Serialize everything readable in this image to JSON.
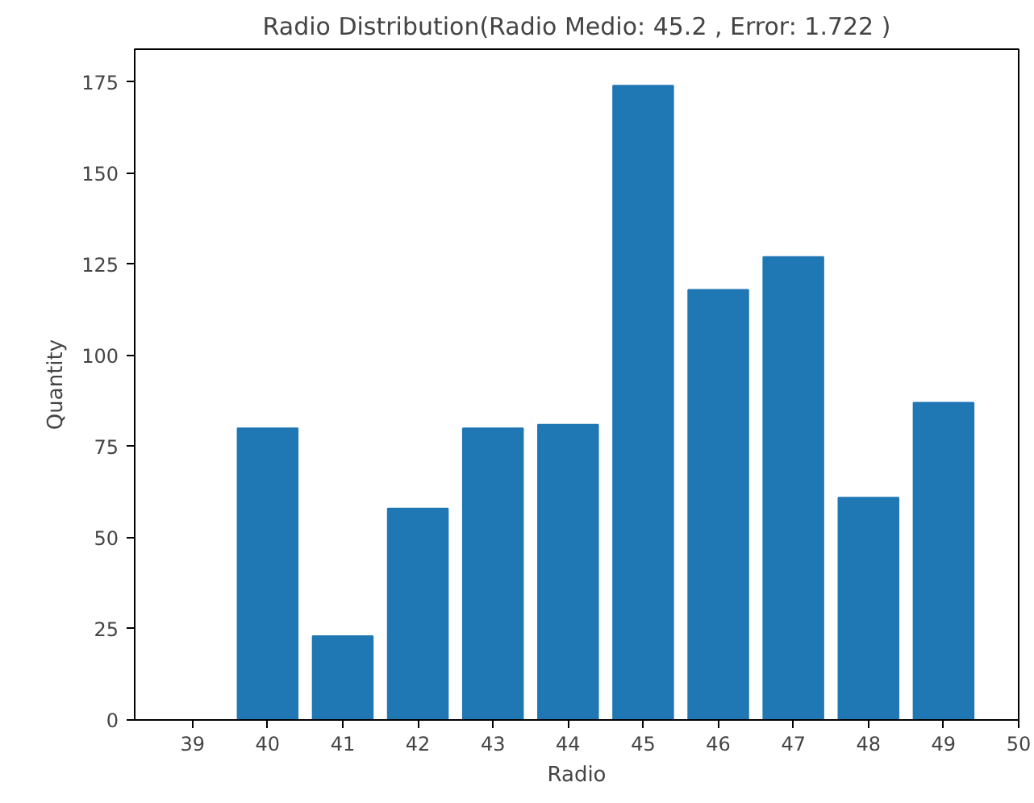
{
  "chart_data": {
    "type": "bar",
    "title": "Radio Distribution(Radio Medio: 45.2 , Error: 1.722 )",
    "xlabel": "Radio",
    "ylabel": "Quantity",
    "x": [
      39,
      40,
      41,
      42,
      43,
      44,
      45,
      46,
      47,
      48,
      49
    ],
    "values": [
      0,
      80,
      23,
      58,
      80,
      81,
      174,
      118,
      127,
      61,
      87
    ],
    "color": "#1f77b4",
    "xlim": [
      38.23,
      50
    ],
    "xticks": [
      39,
      40,
      41,
      42,
      43,
      44,
      45,
      46,
      47,
      48,
      49,
      50
    ],
    "ylim": [
      0,
      184
    ],
    "yticks": [
      0,
      25,
      50,
      75,
      100,
      125,
      150,
      175
    ],
    "grid": false
  }
}
